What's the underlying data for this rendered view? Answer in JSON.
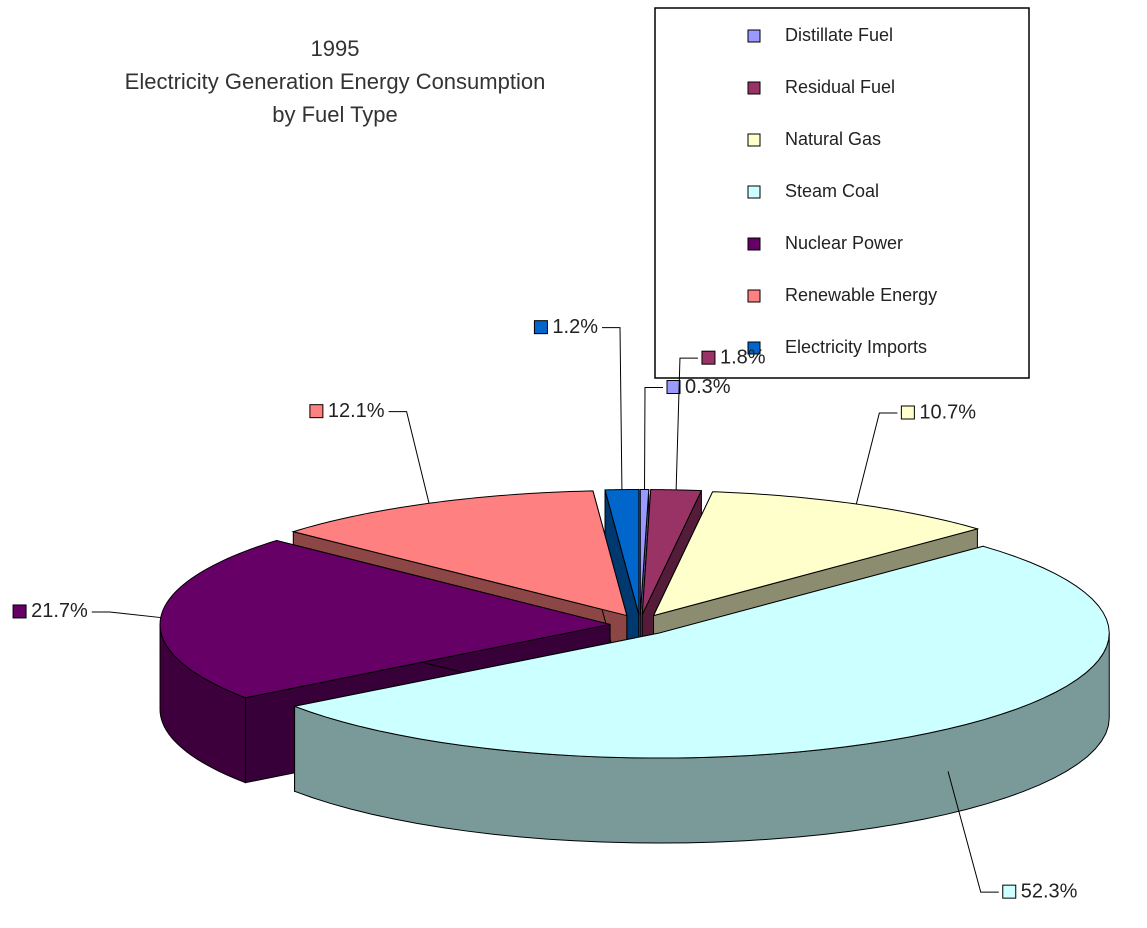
{
  "chart_data": {
    "type": "pie",
    "title": [
      "1995",
      "Electricity Generation Energy Consumption",
      "by Fuel Type"
    ],
    "categories": [
      "Distillate Fuel",
      "Residual Fuel",
      "Natural Gas",
      "Steam Coal",
      "Nuclear Power",
      "Renewable Energy",
      "Electricity Imports"
    ],
    "values": [
      0.3,
      1.8,
      10.7,
      52.3,
      21.7,
      12.1,
      1.2
    ],
    "value_labels": [
      "0.3%",
      "1.8%",
      "10.7%",
      "52.3%",
      "21.7%",
      "12.1%",
      "1.2%"
    ],
    "colors": [
      "#9999ff",
      "#993366",
      "#ffffcc",
      "#ccffff",
      "#660066",
      "#ff8080",
      "#0066cc"
    ],
    "legend": "top-right"
  }
}
